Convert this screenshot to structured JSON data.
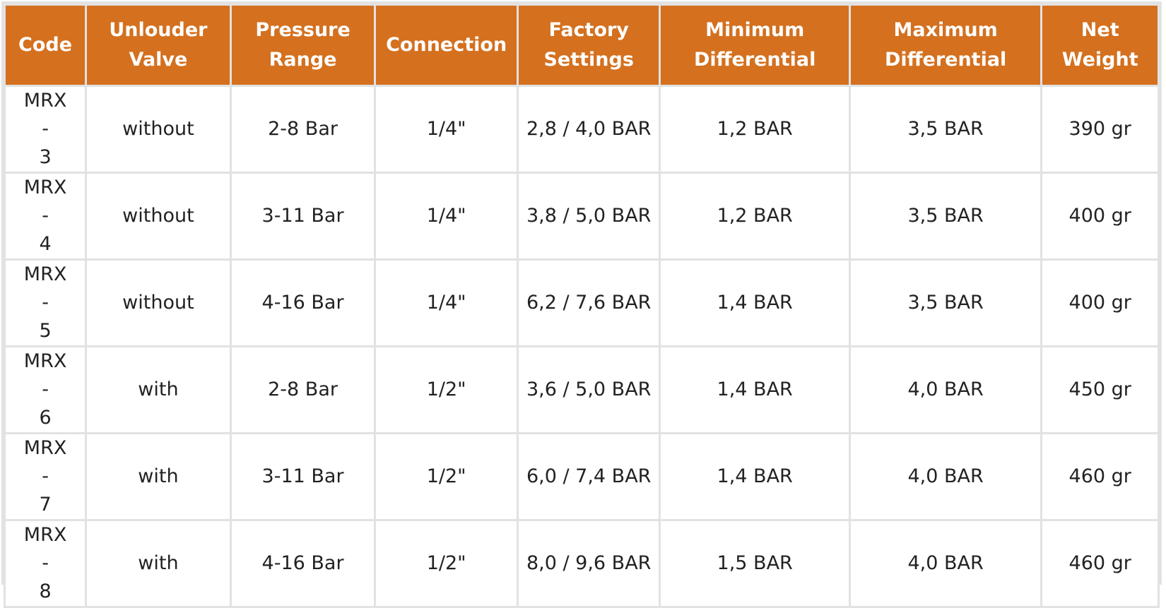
{
  "table": {
    "headers": [
      [
        "Code"
      ],
      [
        "Unlouder",
        "Valve"
      ],
      [
        "Pressure",
        "Range"
      ],
      [
        "Connection"
      ],
      [
        "Factory",
        "Settings"
      ],
      [
        "Minimum",
        "Differential"
      ],
      [
        "Maximum",
        "Differential"
      ],
      [
        "Net",
        "Weight"
      ]
    ],
    "rows": [
      {
        "code": [
          "MRX-",
          "3"
        ],
        "unloader": "without",
        "pressure": "2-8 Bar",
        "connection": "1/4\"",
        "factory": "2,8 / 4,0 BAR",
        "min": "1,2 BAR",
        "max": "3,5 BAR",
        "weight": "390 gr"
      },
      {
        "code": [
          "MRX-",
          "4"
        ],
        "unloader": "without",
        "pressure": "3-11 Bar",
        "connection": "1/4\"",
        "factory": "3,8 / 5,0 BAR",
        "min": "1,2 BAR",
        "max": "3,5 BAR",
        "weight": "400 gr"
      },
      {
        "code": [
          "MRX-",
          "5"
        ],
        "unloader": "without",
        "pressure": "4-16 Bar",
        "connection": "1/4\"",
        "factory": "6,2 / 7,6 BAR",
        "min": "1,4 BAR",
        "max": "3,5 BAR",
        "weight": "400 gr"
      },
      {
        "code": [
          "MRX-",
          "6"
        ],
        "unloader": "with",
        "pressure": "2-8 Bar",
        "connection": "1/2\"",
        "factory": "3,6 / 5,0 BAR",
        "min": "1,4 BAR",
        "max": "4,0 BAR",
        "weight": "450 gr"
      },
      {
        "code": [
          "MRX-",
          "7"
        ],
        "unloader": "with",
        "pressure": "3-11 Bar",
        "connection": "1/2\"",
        "factory": "6,0 / 7,4 BAR",
        "min": "1,4 BAR",
        "max": "4,0 BAR",
        "weight": "460 gr"
      },
      {
        "code": [
          "MRX-",
          "8"
        ],
        "unloader": "with",
        "pressure": "4-16 Bar",
        "connection": "1/2\"",
        "factory": "8,0 / 9,6 BAR",
        "min": "1,5 BAR",
        "max": "4,0 BAR",
        "weight": "460 gr"
      }
    ]
  },
  "colors": {
    "header_bg": "#d4701e",
    "header_text": "#ffffff",
    "grid": "#e2e2e2",
    "cell_text": "#222222"
  }
}
